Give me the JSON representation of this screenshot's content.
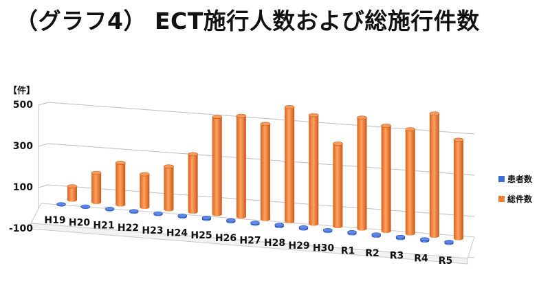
{
  "title": "（グラフ4） ECT施行人数および総施行件数",
  "unit_label": "【件】",
  "chart_data": {
    "type": "bar",
    "title": "（グラフ4） ECT施行人数および総施行件数",
    "ylabel": "【件】",
    "ylim": [
      -100,
      500
    ],
    "yticks": [
      500,
      300,
      100,
      -100
    ],
    "grid": true,
    "legend_position": "right",
    "categories": [
      "H19",
      "H20",
      "H21",
      "H22",
      "H23",
      "H24",
      "H25",
      "H26",
      "H27",
      "H28",
      "H29",
      "H30",
      "R1",
      "R2",
      "R3",
      "R4",
      "R5"
    ],
    "series": [
      {
        "name": "患者数",
        "color": "#3a6fd8",
        "values": [
          10,
          12,
          14,
          16,
          18,
          22,
          28,
          26,
          24,
          30,
          28,
          22,
          28,
          30,
          30,
          30,
          26
        ]
      },
      {
        "name": "総件数",
        "color": "#ed7d31",
        "values": [
          60,
          130,
          185,
          145,
          190,
          255,
          430,
          445,
          420,
          505,
          480,
          365,
          490,
          465,
          460,
          540,
          435
        ]
      }
    ]
  }
}
